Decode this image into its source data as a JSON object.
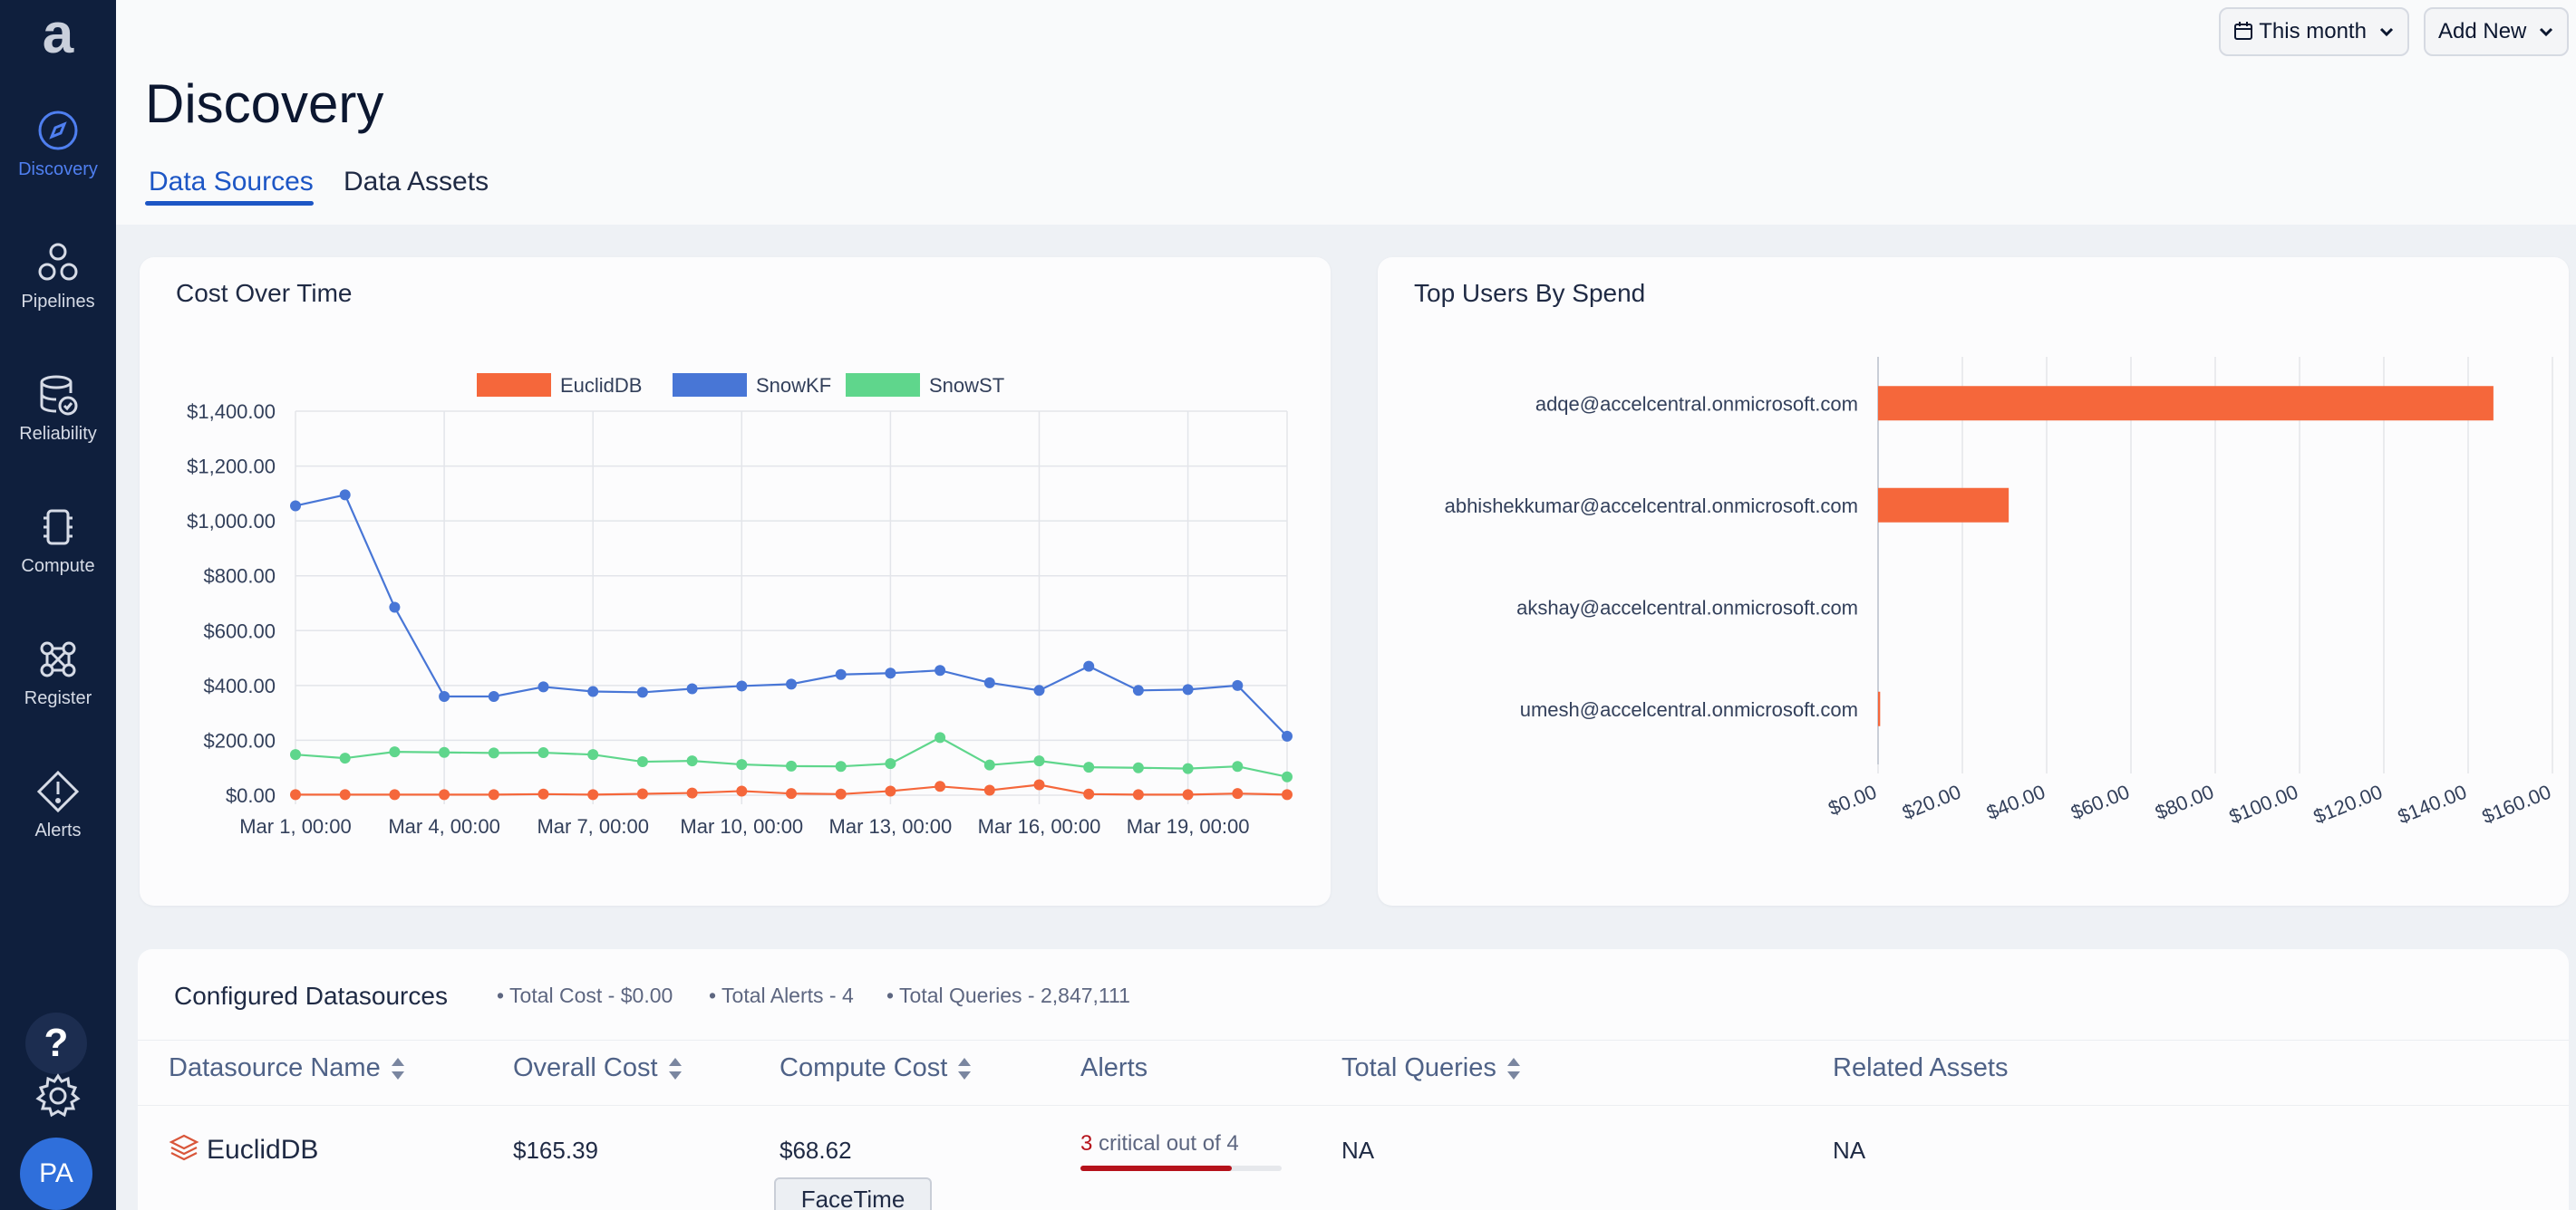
{
  "sidebar": {
    "logo": "a",
    "items": [
      {
        "label": "Discovery",
        "icon": "compass-icon",
        "active": true
      },
      {
        "label": "Pipelines",
        "icon": "pipelines-icon",
        "active": false
      },
      {
        "label": "Reliability",
        "icon": "database-check-icon",
        "active": false
      },
      {
        "label": "Compute",
        "icon": "chip-icon",
        "active": false
      },
      {
        "label": "Register",
        "icon": "register-icon",
        "active": false
      },
      {
        "label": "Alerts",
        "icon": "alert-icon",
        "active": false
      }
    ],
    "help_label": "?",
    "avatar_initials": "PA"
  },
  "header": {
    "title": "Discovery",
    "date_filter": "This month",
    "add_new": "Add New",
    "tabs": [
      {
        "label": "Data Sources",
        "active": true
      },
      {
        "label": "Data Assets",
        "active": false
      }
    ]
  },
  "colors": {
    "accent": "#1d56c5",
    "euclid": "#f5673b",
    "snowkf": "#4876d6",
    "snowst": "#5fd68c",
    "sidebar": "#0f1f3d"
  },
  "chart_data": [
    {
      "type": "line",
      "title": "Cost Over Time",
      "x": [
        "Mar 1",
        "Mar 2",
        "Mar 3",
        "Mar 4",
        "Mar 5",
        "Mar 6",
        "Mar 7",
        "Mar 8",
        "Mar 9",
        "Mar 10",
        "Mar 11",
        "Mar 12",
        "Mar 13",
        "Mar 14",
        "Mar 15",
        "Mar 16",
        "Mar 17",
        "Mar 18",
        "Mar 19",
        "Mar 20",
        "Mar 21"
      ],
      "x_tick_labels": [
        "Mar 1, 00:00",
        "Mar 4, 00:00",
        "Mar 7, 00:00",
        "Mar 10, 00:00",
        "Mar 13, 00:00",
        "Mar 16, 00:00",
        "Mar 19, 00:00"
      ],
      "y_tick_labels": [
        "$0.00",
        "$200.00",
        "$400.00",
        "$600.00",
        "$800.00",
        "$1,000.00",
        "$1,200.00",
        "$1,400.00"
      ],
      "ylim": [
        0,
        1400
      ],
      "grid": true,
      "legend_position": "top",
      "series": [
        {
          "name": "EuclidDB",
          "color": "#f5673b",
          "values": [
            2,
            2,
            2,
            2,
            2,
            4,
            2,
            5,
            8,
            15,
            6,
            4,
            15,
            32,
            18,
            38,
            4,
            2,
            2,
            6,
            2
          ]
        },
        {
          "name": "SnowKF",
          "color": "#4876d6",
          "values": [
            1055,
            1095,
            685,
            360,
            360,
            395,
            378,
            375,
            388,
            398,
            405,
            440,
            445,
            455,
            410,
            382,
            470,
            382,
            385,
            400,
            215
          ]
        },
        {
          "name": "SnowST",
          "color": "#5fd68c",
          "values": [
            148,
            135,
            158,
            156,
            154,
            155,
            148,
            122,
            125,
            112,
            106,
            105,
            115,
            210,
            110,
            125,
            102,
            100,
            97,
            105,
            67
          ]
        }
      ]
    },
    {
      "type": "bar",
      "orientation": "horizontal",
      "title": "Top Users By Spend",
      "categories": [
        "adqe@accelcentral.onmicrosoft.com",
        "abhishekkumar@accelcentral.onmicrosoft.com",
        "akshay@accelcentral.onmicrosoft.com",
        "umesh@accelcentral.onmicrosoft.com"
      ],
      "values": [
        146,
        31,
        0,
        0.5
      ],
      "color": "#f5673b",
      "xlim": [
        0,
        160
      ],
      "x_tick_labels": [
        "$0.00",
        "$20.00",
        "$40.00",
        "$60.00",
        "$80.00",
        "$100.00",
        "$120.00",
        "$140.00",
        "$160.00"
      ],
      "grid": true
    }
  ],
  "datasources": {
    "title": "Configured Datasources",
    "stats": [
      "• Total Cost - $0.00",
      "• Total Alerts - 4",
      "• Total Queries - 2,847,111"
    ],
    "columns": [
      "Datasource Name",
      "Overall Cost",
      "Compute Cost",
      "Alerts",
      "Total Queries",
      "Related Assets"
    ],
    "rows": [
      {
        "name": "EuclidDB",
        "overall_cost": "$165.39",
        "compute_cost": "$68.62",
        "alerts_critical": "3",
        "alerts_text": "critical out of 4",
        "alerts_fraction": 0.75,
        "total_queries": "NA",
        "related_assets": "NA"
      }
    ]
  },
  "overlay": {
    "facetime": "FaceTime"
  }
}
